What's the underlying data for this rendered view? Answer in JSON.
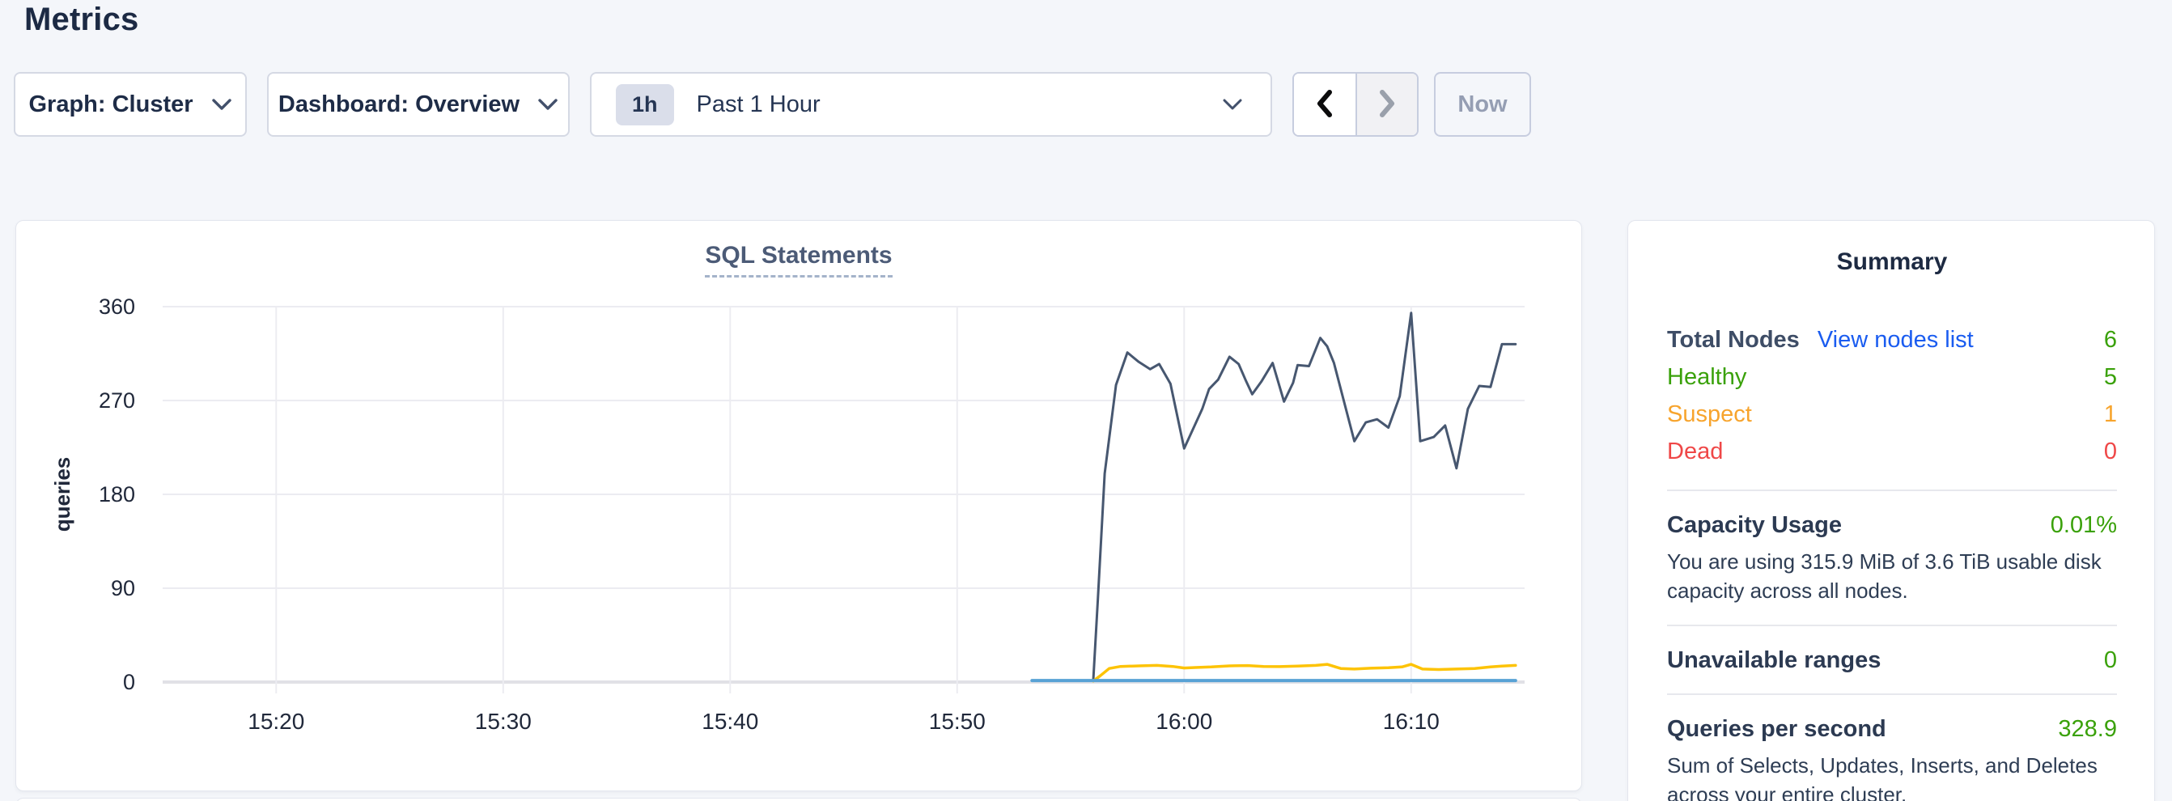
{
  "page": {
    "title": "Metrics",
    "background": "#f4f6fa"
  },
  "toolbar": {
    "graph_dropdown": {
      "label": "Graph: Cluster",
      "icon": "chevron-down"
    },
    "dashboard_dropdown": {
      "label": "Dashboard: Overview",
      "icon": "chevron-down"
    },
    "time_selector": {
      "badge": "1h",
      "label": "Past 1 Hour",
      "icon": "chevron-down"
    },
    "prev_button": {
      "icon": "chevron-left",
      "enabled": true
    },
    "next_button": {
      "icon": "chevron-right",
      "enabled": false
    },
    "now_button": {
      "label": "Now",
      "enabled": false
    }
  },
  "chart_data": {
    "type": "line",
    "title": "SQL Statements",
    "ylabel": "queries",
    "ylim": [
      0,
      360
    ],
    "y_ticks": [
      0,
      90,
      180,
      270,
      360
    ],
    "x_unit": "minutes after 15:00",
    "x_domain_minutes": [
      15,
      75
    ],
    "x_ticks": [
      {
        "t": 20,
        "label": "15:20"
      },
      {
        "t": 30,
        "label": "15:30"
      },
      {
        "t": 40,
        "label": "15:40"
      },
      {
        "t": 50,
        "label": "15:50"
      },
      {
        "t": 60,
        "label": "16:00"
      },
      {
        "t": 70,
        "label": "16:10"
      }
    ],
    "grid": true,
    "legend": "none",
    "series": [
      {
        "name": "dark-slate-line",
        "color": "#475770",
        "width": 3,
        "points": [
          [
            56.0,
            2
          ],
          [
            56.2,
            80
          ],
          [
            56.5,
            200
          ],
          [
            57.0,
            285
          ],
          [
            57.5,
            316
          ],
          [
            58.0,
            307
          ],
          [
            58.5,
            300
          ],
          [
            58.9,
            305
          ],
          [
            59.4,
            286
          ],
          [
            60.0,
            224
          ],
          [
            60.4,
            243
          ],
          [
            60.8,
            262
          ],
          [
            61.1,
            281
          ],
          [
            61.5,
            290
          ],
          [
            62.0,
            312
          ],
          [
            62.4,
            305
          ],
          [
            62.7,
            290
          ],
          [
            63.0,
            276
          ],
          [
            63.4,
            288
          ],
          [
            63.9,
            306
          ],
          [
            64.4,
            269
          ],
          [
            64.8,
            287
          ],
          [
            65.0,
            304
          ],
          [
            65.5,
            303
          ],
          [
            66.0,
            330
          ],
          [
            66.3,
            322
          ],
          [
            66.6,
            306
          ],
          [
            67.5,
            231
          ],
          [
            68.0,
            249
          ],
          [
            68.5,
            252
          ],
          [
            69.0,
            244
          ],
          [
            69.5,
            274
          ],
          [
            70.0,
            354
          ],
          [
            70.4,
            231
          ],
          [
            71.0,
            235
          ],
          [
            71.5,
            246
          ],
          [
            72.0,
            205
          ],
          [
            72.5,
            262
          ],
          [
            73.0,
            284
          ],
          [
            73.5,
            283
          ],
          [
            74.0,
            324
          ],
          [
            74.6,
            324
          ]
        ]
      },
      {
        "name": "yellow-line",
        "color": "#fdc306",
        "width": 3.5,
        "points": [
          [
            56.0,
            1
          ],
          [
            56.3,
            6
          ],
          [
            56.7,
            13
          ],
          [
            57.2,
            15
          ],
          [
            58.0,
            15.5
          ],
          [
            58.8,
            16
          ],
          [
            59.5,
            15
          ],
          [
            60.0,
            13.5
          ],
          [
            60.5,
            14
          ],
          [
            61.2,
            14.5
          ],
          [
            62.0,
            15.5
          ],
          [
            62.8,
            15.8
          ],
          [
            63.5,
            15
          ],
          [
            64.2,
            14.8
          ],
          [
            65.0,
            15.3
          ],
          [
            65.8,
            16
          ],
          [
            66.3,
            17
          ],
          [
            66.9,
            13
          ],
          [
            67.5,
            12.5
          ],
          [
            68.2,
            13.3
          ],
          [
            69.0,
            13.8
          ],
          [
            69.6,
            14.5
          ],
          [
            70.0,
            17
          ],
          [
            70.5,
            12.5
          ],
          [
            71.2,
            12
          ],
          [
            72.0,
            12.5
          ],
          [
            72.8,
            13
          ],
          [
            73.5,
            14.5
          ],
          [
            74.0,
            15.3
          ],
          [
            74.6,
            16
          ]
        ]
      },
      {
        "name": "light-blue-line",
        "color": "#58a2d5",
        "width": 4,
        "points": [
          [
            53.3,
            1.5
          ],
          [
            74.6,
            1.5
          ]
        ]
      }
    ]
  },
  "summary": {
    "title": "Summary",
    "node_rows": [
      {
        "label": "Total Nodes",
        "link": "View nodes list",
        "value": "6",
        "label_color": "heading",
        "label_bold": true,
        "value_color": "green"
      },
      {
        "label": "Healthy",
        "value": "5",
        "label_color": "green",
        "label_bold": false,
        "value_color": "green"
      },
      {
        "label": "Suspect",
        "value": "1",
        "label_color": "orange",
        "label_bold": false,
        "value_color": "orange"
      },
      {
        "label": "Dead",
        "value": "0",
        "label_color": "red",
        "label_bold": false,
        "value_color": "red"
      }
    ],
    "sections": [
      {
        "label": "Capacity Usage",
        "value": "0.01%",
        "value_color": "green",
        "description": "You are using 315.9 MiB of 3.6 TiB usable disk capacity across all nodes."
      },
      {
        "label": "Unavailable ranges",
        "value": "0",
        "value_color": "green"
      },
      {
        "label": "Queries per second",
        "value": "328.9",
        "value_color": "green",
        "description": "Sum of Selects, Updates, Inserts, and Deletes across your entire cluster."
      }
    ]
  },
  "colors": {
    "green": "#3aa10a",
    "orange": "#f7a42d",
    "red": "#ef4747",
    "link_blue": "#1a5cf0",
    "heading": "#3e4d66",
    "body_text": "#2e3d54",
    "axis_text": "#20283a",
    "grid": "#ececf1",
    "grid_zero": "#e1e1e6"
  }
}
